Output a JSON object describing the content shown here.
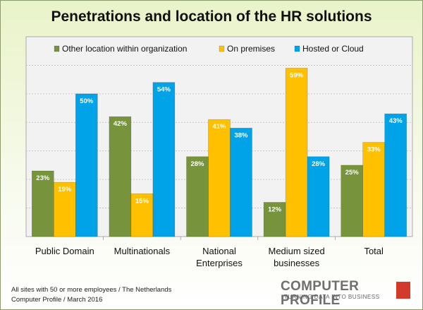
{
  "chart_data": {
    "type": "bar",
    "title": "Penetrations and location of the HR solutions",
    "categories": [
      "Public Domain",
      "Multinationals",
      "National Enterprises",
      "Medium sized businesses",
      "Total"
    ],
    "category_lines": [
      [
        "Public Domain"
      ],
      [
        "Multinationals"
      ],
      [
        "National",
        "Enterprises"
      ],
      [
        "Medium sized",
        "businesses"
      ],
      [
        "Total"
      ]
    ],
    "series": [
      {
        "name": "Other location within organization",
        "color": "#77933c",
        "values": [
          23,
          42,
          28,
          12,
          25
        ]
      },
      {
        "name": "On premises",
        "color": "#ffc000",
        "values": [
          19,
          15,
          41,
          59,
          33
        ]
      },
      {
        "name": "Hosted or Cloud",
        "color": "#00a2e8",
        "values": [
          50,
          54,
          38,
          28,
          43
        ]
      }
    ],
    "value_suffix": "%",
    "ylim": [
      0,
      70
    ],
    "gridline_step": 10,
    "legend_position": "top",
    "grid": true
  },
  "footer": {
    "line1": "All sites with 50 or more employees / The Netherlands",
    "line2": "Computer Profile / March 2016"
  },
  "logo": {
    "name": "COMPUTER PROFILE",
    "tagline": "TURNING DATA INTO BUSINESS"
  }
}
